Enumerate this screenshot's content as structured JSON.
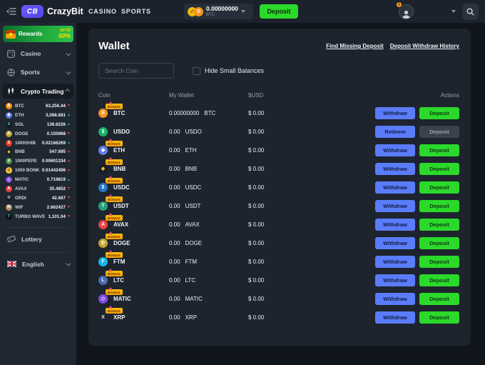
{
  "topbar": {
    "logo_badge": "CB",
    "logo_text": "CrazyBit",
    "nav": [
      {
        "label": "CASINO"
      },
      {
        "label": "SPORTS"
      }
    ],
    "balance": {
      "amount": "0.00000000",
      "currency": "BTC"
    },
    "deposit_label": "Deposit",
    "notification_count": "1"
  },
  "sidebar": {
    "rewards": {
      "label": "Rewards",
      "upto": "UP TO",
      "percent": "50%"
    },
    "casino_label": "Casino",
    "sports_label": "Sports",
    "crypto_trading_label": "Crypto Trading",
    "coins": [
      {
        "symbol": "BTC",
        "price": "63,256.44",
        "dir": "down",
        "icon": {
          "bg": "#f7931a",
          "fg": "#ffffff",
          "glyph": "B"
        }
      },
      {
        "symbol": "ETH",
        "price": "3,088.681",
        "dir": "up",
        "icon": {
          "bg": "#627eea",
          "fg": "#ffffff",
          "glyph": "◆"
        }
      },
      {
        "symbol": "SOL",
        "price": "136.6226",
        "dir": "up",
        "icon": {
          "bg": "#151a2e",
          "fg": "#35e0a0",
          "glyph": "S"
        }
      },
      {
        "symbol": "DOGE",
        "price": "0.155968",
        "dir": "down",
        "icon": {
          "bg": "#c2a633",
          "fg": "#ffffff",
          "glyph": "Đ"
        }
      },
      {
        "symbol": "1000SHIB",
        "price": "0.02166269",
        "dir": "up",
        "icon": {
          "bg": "#e93b24",
          "fg": "#ffffff",
          "glyph": "S"
        }
      },
      {
        "symbol": "BNB",
        "price": "547.695",
        "dir": "down",
        "icon": {
          "bg": "#1a1d24",
          "fg": "#f3ba2f",
          "glyph": "◆"
        }
      },
      {
        "symbol": "1000PEPE",
        "price": "0.00601334",
        "dir": "down",
        "icon": {
          "bg": "#4c9540",
          "fg": "#ffffff",
          "glyph": "P"
        }
      },
      {
        "symbol": "1000 BONK",
        "price": "0.01442496",
        "dir": "down",
        "icon": {
          "bg": "#f6c945",
          "fg": "#b45309",
          "glyph": "B"
        }
      },
      {
        "symbol": "MATIC",
        "price": "0.719819",
        "dir": "up",
        "icon": {
          "bg": "#8247e5",
          "fg": "#ffffff",
          "glyph": "◇"
        }
      },
      {
        "symbol": "AVAX",
        "price": "35.4852",
        "dir": "down",
        "icon": {
          "bg": "#e84142",
          "fg": "#ffffff",
          "glyph": "A"
        }
      },
      {
        "symbol": "ORDI",
        "price": "42.667",
        "dir": "down",
        "icon": {
          "bg": "#15171c",
          "fg": "#ffffff",
          "glyph": "O"
        }
      },
      {
        "symbol": "WIF",
        "price": "2.662427",
        "dir": "down",
        "icon": {
          "bg": "#b08b5e",
          "fg": "#ffffff",
          "glyph": "W"
        }
      },
      {
        "symbol": "TURBO WAVE",
        "price": "1,101.04",
        "dir": "down",
        "icon": {
          "bg": "#0f1318",
          "fg": "#3ddc97",
          "glyph": "T"
        }
      }
    ],
    "lottery_label": "Lottery",
    "language_label": "English"
  },
  "wallet": {
    "title": "Wallet",
    "links": [
      {
        "label": "Find Missing Deposit"
      },
      {
        "label": "Deposit Withdraw History"
      }
    ],
    "search_placeholder": "Search Coin",
    "hide_small_label": "Hide Small Balances",
    "bonus_label": "BONUS",
    "columns": {
      "coin": "Coin",
      "wallet": "My Wallet",
      "usd": "$USD",
      "actions": "Actions"
    },
    "rows": [
      {
        "symbol": "BTC",
        "amount": "0.00000000",
        "unit": "BTC",
        "usd": "$ 0.00",
        "bonus": true,
        "buttons": [
          {
            "label": "Withdraw",
            "style": "blue"
          },
          {
            "label": "Deposit",
            "style": "green"
          }
        ],
        "icon": {
          "bg": "#f7931a",
          "fg": "#ffffff",
          "glyph": "B"
        }
      },
      {
        "symbol": "USDO",
        "amount": "0.00",
        "unit": "USDO",
        "usd": "$ 0.00",
        "bonus": false,
        "buttons": [
          {
            "label": "Redeem",
            "style": "blue"
          },
          {
            "label": "Deposit",
            "style": "disabled"
          }
        ],
        "icon": {
          "bg": "#17b26a",
          "fg": "#ffffff",
          "glyph": "$"
        }
      },
      {
        "symbol": "ETH",
        "amount": "0.00",
        "unit": "ETH",
        "usd": "$ 0.00",
        "bonus": true,
        "buttons": [
          {
            "label": "Withdraw",
            "style": "blue"
          },
          {
            "label": "Deposit",
            "style": "green"
          }
        ],
        "icon": {
          "bg": "#627eea",
          "fg": "#ffffff",
          "glyph": "◆"
        }
      },
      {
        "symbol": "BNB",
        "amount": "0.00",
        "unit": "BNB",
        "usd": "$ 0.00",
        "bonus": true,
        "buttons": [
          {
            "label": "Withdraw",
            "style": "blue"
          },
          {
            "label": "Deposit",
            "style": "green"
          }
        ],
        "icon": {
          "bg": "#1a1d24",
          "fg": "#f3ba2f",
          "glyph": "◆"
        }
      },
      {
        "symbol": "USDC",
        "amount": "0.00",
        "unit": "USDC",
        "usd": "$ 0.00",
        "bonus": true,
        "buttons": [
          {
            "label": "Withdraw",
            "style": "blue"
          },
          {
            "label": "Deposit",
            "style": "green"
          }
        ],
        "icon": {
          "bg": "#2775ca",
          "fg": "#ffffff",
          "glyph": "$"
        }
      },
      {
        "symbol": "USDT",
        "amount": "0.00",
        "unit": "USDT",
        "usd": "$ 0.00",
        "bonus": true,
        "buttons": [
          {
            "label": "Withdraw",
            "style": "blue"
          },
          {
            "label": "Deposit",
            "style": "green"
          }
        ],
        "icon": {
          "bg": "#26a17b",
          "fg": "#ffffff",
          "glyph": "T"
        }
      },
      {
        "symbol": "AVAX",
        "amount": "0.00",
        "unit": "AVAX",
        "usd": "$ 0.00",
        "bonus": true,
        "buttons": [
          {
            "label": "Withdraw",
            "style": "blue"
          },
          {
            "label": "Deposit",
            "style": "green"
          }
        ],
        "icon": {
          "bg": "#e84142",
          "fg": "#ffffff",
          "glyph": "A"
        }
      },
      {
        "symbol": "DOGE",
        "amount": "0.00",
        "unit": "DOGE",
        "usd": "$ 0.00",
        "bonus": true,
        "buttons": [
          {
            "label": "Withdraw",
            "style": "blue"
          },
          {
            "label": "Deposit",
            "style": "green"
          }
        ],
        "icon": {
          "bg": "#c2a633",
          "fg": "#ffffff",
          "glyph": "Đ"
        }
      },
      {
        "symbol": "FTM",
        "amount": "0.00",
        "unit": "FTM",
        "usd": "$ 0.00",
        "bonus": true,
        "buttons": [
          {
            "label": "Withdraw",
            "style": "blue"
          },
          {
            "label": "Deposit",
            "style": "green"
          }
        ],
        "icon": {
          "bg": "#13b5ec",
          "fg": "#ffffff",
          "glyph": "F"
        }
      },
      {
        "symbol": "LTC",
        "amount": "0.00",
        "unit": "LTC",
        "usd": "$ 0.00",
        "bonus": true,
        "buttons": [
          {
            "label": "Withdraw",
            "style": "blue"
          },
          {
            "label": "Deposit",
            "style": "green"
          }
        ],
        "icon": {
          "bg": "#4a69b0",
          "fg": "#ffffff",
          "glyph": "L"
        }
      },
      {
        "symbol": "MATIC",
        "amount": "0.00",
        "unit": "MATIC",
        "usd": "$ 0.00",
        "bonus": true,
        "buttons": [
          {
            "label": "Withdraw",
            "style": "blue"
          },
          {
            "label": "Deposit",
            "style": "green"
          }
        ],
        "icon": {
          "bg": "#8247e5",
          "fg": "#ffffff",
          "glyph": "◇"
        }
      },
      {
        "symbol": "XRP",
        "amount": "0.00",
        "unit": "XRP",
        "usd": "$ 0.00",
        "bonus": true,
        "buttons": [
          {
            "label": "Withdraw",
            "style": "blue"
          },
          {
            "label": "Deposit",
            "style": "green"
          }
        ],
        "icon": {
          "bg": "transparent",
          "fg": "#e8edf3",
          "glyph": "X"
        }
      }
    ]
  },
  "colors": {
    "accent_green": "#2bd92b",
    "accent_blue": "#5b7cfa",
    "trend_up": "#2ebd85",
    "trend_down": "#f6465d"
  }
}
